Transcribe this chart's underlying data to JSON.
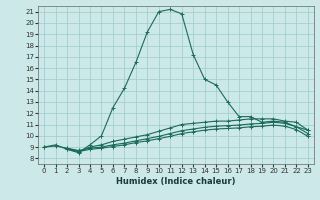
{
  "xlabel": "Humidex (Indice chaleur)",
  "bg_color": "#cce8e8",
  "grid_color": "#99cccc",
  "line_color": "#1a6b5a",
  "xlim": [
    -0.5,
    23.5
  ],
  "ylim": [
    7.5,
    21.5
  ],
  "xticks": [
    0,
    1,
    2,
    3,
    4,
    5,
    6,
    7,
    8,
    9,
    10,
    11,
    12,
    13,
    14,
    15,
    16,
    17,
    18,
    19,
    20,
    21,
    22,
    23
  ],
  "yticks": [
    8,
    9,
    10,
    11,
    12,
    13,
    14,
    15,
    16,
    17,
    18,
    19,
    20,
    21
  ],
  "curve1_x": [
    0,
    1,
    2,
    3,
    4,
    5,
    6,
    7,
    8,
    9,
    10,
    11,
    12,
    13,
    14,
    15,
    16,
    17,
    18,
    19,
    20,
    21,
    22,
    23
  ],
  "curve1_y": [
    9.0,
    9.2,
    8.8,
    8.5,
    9.2,
    10.0,
    12.5,
    14.2,
    16.5,
    19.2,
    21.0,
    21.2,
    20.8,
    17.2,
    15.0,
    14.5,
    13.0,
    11.7,
    11.7,
    11.2,
    11.3,
    11.2,
    10.8,
    10.5
  ],
  "curve2_x": [
    0,
    1,
    2,
    3,
    4,
    5,
    6,
    7,
    8,
    9,
    10,
    11,
    12,
    13,
    14,
    15,
    16,
    17,
    18,
    19,
    20,
    21,
    22,
    23
  ],
  "curve2_y": [
    9.0,
    9.1,
    8.9,
    8.6,
    9.0,
    9.2,
    9.5,
    9.7,
    9.9,
    10.1,
    10.4,
    10.7,
    11.0,
    11.1,
    11.2,
    11.3,
    11.3,
    11.4,
    11.5,
    11.5,
    11.5,
    11.3,
    11.2,
    10.5
  ],
  "curve3_x": [
    2,
    3,
    4,
    5,
    6,
    7,
    8,
    9,
    10,
    11,
    12,
    13,
    14,
    15,
    16,
    17,
    18,
    19,
    20,
    21,
    22,
    23
  ],
  "curve3_y": [
    8.9,
    8.7,
    8.9,
    9.0,
    9.2,
    9.35,
    9.55,
    9.75,
    9.95,
    10.2,
    10.45,
    10.6,
    10.75,
    10.85,
    10.9,
    10.95,
    11.05,
    11.1,
    11.2,
    11.1,
    10.8,
    10.2
  ],
  "curve4_x": [
    2,
    3,
    4,
    5,
    6,
    7,
    8,
    9,
    10,
    11,
    12,
    13,
    14,
    15,
    16,
    17,
    18,
    19,
    20,
    21,
    22,
    23
  ],
  "curve4_y": [
    8.8,
    8.6,
    8.8,
    8.9,
    9.05,
    9.2,
    9.4,
    9.55,
    9.75,
    9.95,
    10.2,
    10.35,
    10.5,
    10.6,
    10.65,
    10.7,
    10.8,
    10.85,
    10.95,
    10.85,
    10.55,
    9.95
  ]
}
